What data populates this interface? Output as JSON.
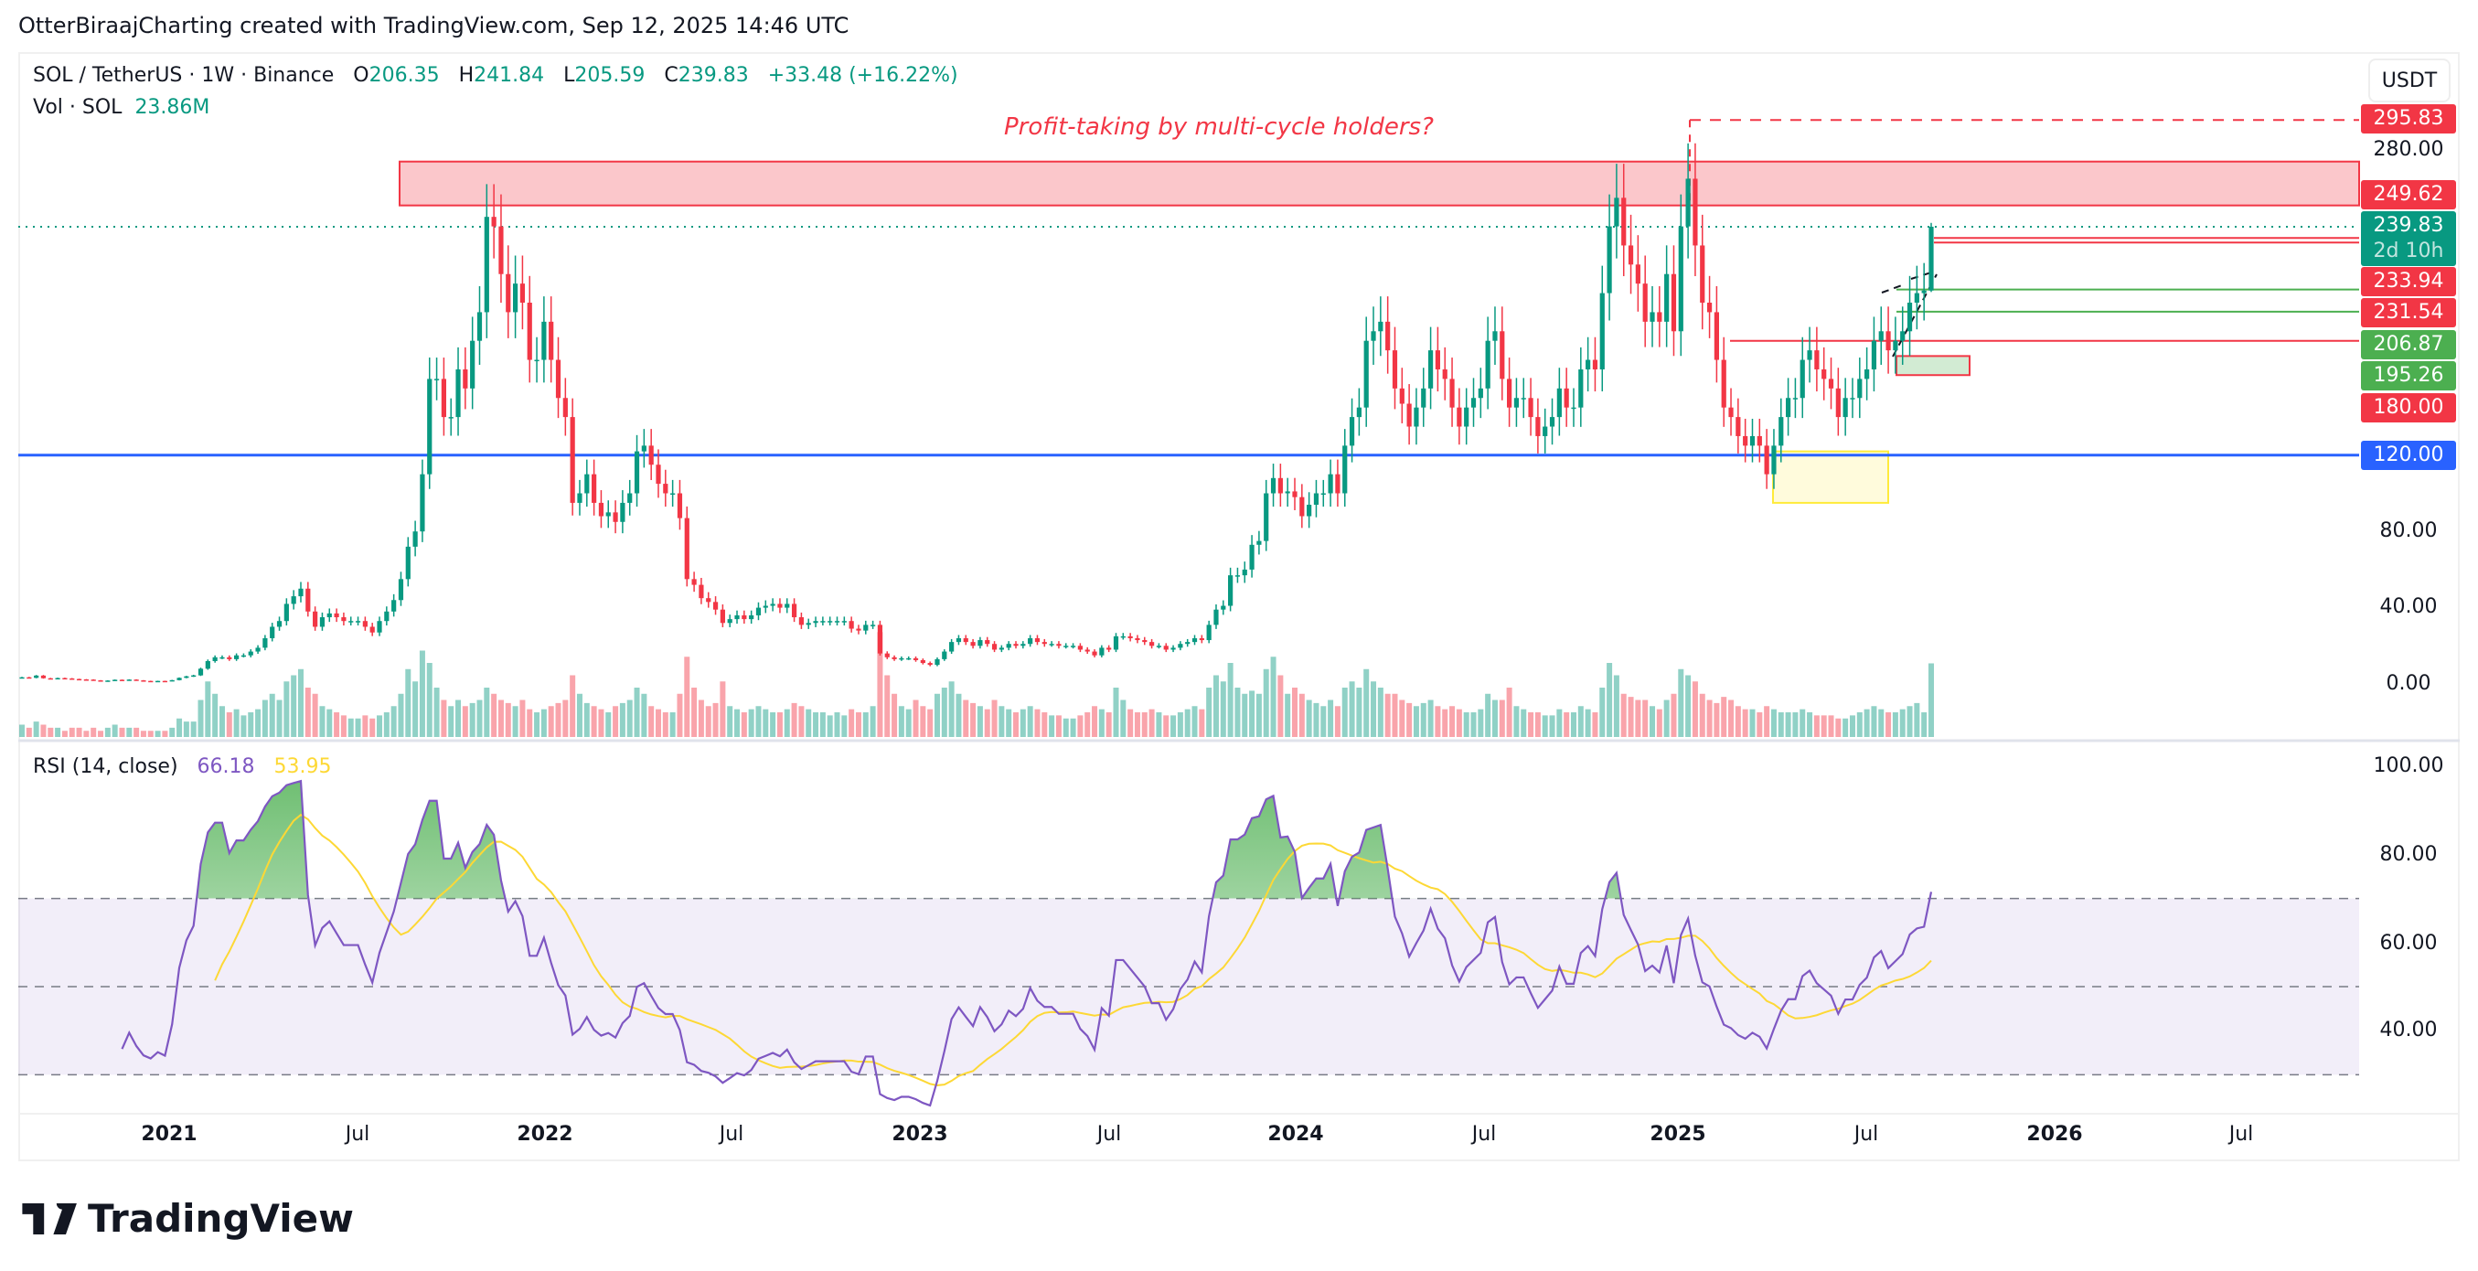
{
  "header": {
    "title": "OtterBiraajCharting created with TradingView.com, Sep 12, 2025 14:46 UTC"
  },
  "legend": {
    "symbol": "SOL / TetherUS · 1W · Binance",
    "open_label": "O",
    "open": "206.35",
    "high_label": "H",
    "high": "241.84",
    "low_label": "L",
    "low": "205.59",
    "close_label": "C",
    "close": "239.83",
    "change": "+33.48 (+16.22%)",
    "volume_label": "Vol · SOL",
    "volume": "23.86M"
  },
  "rsi_legend": {
    "label": "RSI (14, close)",
    "rsi": "66.18",
    "ma": "53.95"
  },
  "currency_button": "USDT",
  "annotation": "Profit-taking by multi-cycle holders?",
  "price_labels": [
    {
      "text": "295.83",
      "color": "#F23645"
    },
    {
      "text": "249.62",
      "color": "#F23645"
    },
    {
      "text": "239.83",
      "sub": "2d 10h",
      "color": "#089981"
    },
    {
      "text": "233.94",
      "color": "#F23645"
    },
    {
      "text": "231.54",
      "color": "#F23645"
    },
    {
      "text": "206.87",
      "color": "#4CAF50"
    },
    {
      "text": "195.26",
      "color": "#4CAF50"
    },
    {
      "text": "180.00",
      "color": "#F23645"
    },
    {
      "text": "120.00",
      "color": "#2962FF"
    }
  ],
  "price_ticks": [
    "280.00",
    "80.00",
    "40.00",
    "0.00"
  ],
  "rsi_ticks": [
    "100.00",
    "80.00",
    "60.00",
    "40.00"
  ],
  "time_labels": [
    "2021",
    "Jul",
    "2022",
    "Jul",
    "2023",
    "Jul",
    "2024",
    "Jul",
    "2025",
    "Jul",
    "2026",
    "Jul"
  ],
  "brand": "TradingView",
  "colors": {
    "up": "#089981",
    "down": "#F23645",
    "rsi": "#7E57C2",
    "rsi_ma": "#FDD835",
    "level": "#2962FF"
  },
  "chart_data": {
    "type": "candlestick",
    "interval": "1W",
    "y_axis": "USDT",
    "levels": [
      295.83,
      249.62,
      239.83,
      233.94,
      231.54,
      206.87,
      195.26,
      180.0,
      120.0
    ],
    "zones": [
      {
        "from": 251,
        "to": 274,
        "color": "#F23645"
      },
      {
        "from": 162,
        "to": 172,
        "color": "#4CAF50"
      },
      {
        "from": 95,
        "to": 122,
        "color": "#FFEB3B"
      }
    ],
    "last_candle": {
      "open": 206.35,
      "high": 241.84,
      "low": 205.59,
      "close": 239.83
    },
    "weekly_close": {
      "2020": [
        3.5,
        3.2,
        4.4,
        3.0,
        2.9,
        3.1,
        2.9,
        2.6,
        2.4,
        2.3,
        1.9,
        1.7,
        1.8,
        2.2,
        2.0,
        2.3,
        1.9,
        1.6,
        1.5,
        1.6,
        1.5
      ],
      "2021": [
        2.0,
        3.2,
        4.0,
        4.5,
        8,
        12,
        14,
        14,
        13,
        15,
        15,
        17,
        19,
        24,
        30,
        33,
        42,
        46,
        50,
        38,
        30,
        35,
        37,
        35,
        33,
        33,
        33,
        30,
        27,
        33,
        38,
        44,
        55,
        72,
        80,
        110,
        160,
        160,
        140,
        140,
        165,
        155,
        180,
        195,
        245,
        240,
        215,
        195,
        210,
        200,
        170,
        170,
        190
      ],
      "2022": [
        170,
        150,
        140,
        95,
        100,
        110,
        95,
        88,
        90,
        85,
        95,
        100,
        122,
        125,
        115,
        105,
        100,
        100,
        87,
        55,
        52,
        45,
        43,
        39,
        32,
        34,
        36,
        34,
        36,
        40,
        41,
        42,
        40,
        42,
        35,
        31,
        32,
        33,
        33,
        33,
        33,
        33,
        29,
        28,
        31,
        31,
        16,
        14,
        13,
        13.5,
        13.5,
        12.5,
        11,
        10
      ],
      "2023": [
        13,
        17,
        22,
        24,
        22,
        20,
        23,
        21,
        18,
        19,
        21,
        20,
        21,
        24,
        22,
        21,
        21,
        20,
        20,
        20,
        18,
        17,
        15,
        19,
        18,
        25,
        25,
        24,
        23,
        22,
        20,
        20,
        18,
        19,
        21,
        22,
        24,
        23,
        31,
        39,
        41,
        57,
        57,
        60,
        73,
        75,
        100,
        108,
        100,
        101
      ],
      "2024": [
        98,
        88,
        94,
        100,
        100,
        110,
        100,
        125,
        140,
        145,
        180,
        185,
        190,
        175,
        155,
        147,
        135,
        145,
        155,
        175,
        165,
        160,
        145,
        135,
        145,
        150,
        155,
        180,
        185,
        160,
        145,
        150,
        150,
        140,
        130,
        135,
        140,
        155,
        145,
        145,
        165,
        170,
        165,
        205,
        240,
        255,
        230,
        220,
        210,
        190,
        195,
        190
      ],
      "2025": [
        215,
        185,
        240,
        265,
        230,
        200,
        195,
        170,
        145,
        140,
        130,
        125,
        130,
        125,
        110,
        125,
        140,
        150,
        150,
        170,
        175,
        165,
        160,
        155,
        140,
        150,
        150,
        160,
        165,
        180,
        185,
        175,
        180,
        185,
        200,
        205,
        206.35,
        239.83
      ]
    },
    "weekly_volume_millions": {
      "2020": [
        4,
        3,
        5,
        4,
        3,
        3,
        2,
        3,
        3,
        2,
        3,
        2,
        3,
        4,
        3,
        3,
        3,
        2,
        2,
        2,
        2
      ],
      "2021": [
        3,
        6,
        5,
        5,
        12,
        18,
        14,
        10,
        8,
        9,
        7,
        8,
        9,
        12,
        14,
        12,
        18,
        20,
        22,
        16,
        14,
        10,
        9,
        8,
        7,
        6,
        6,
        7,
        6,
        7,
        8,
        10,
        14,
        22,
        18,
        28,
        24,
        16,
        12,
        10,
        12,
        10,
        11,
        12,
        16,
        14,
        12,
        11,
        10,
        12,
        9,
        8,
        9
      ],
      "2022": [
        10,
        11,
        12,
        20,
        14,
        11,
        10,
        9,
        8,
        10,
        11,
        12,
        16,
        14,
        10,
        9,
        8,
        8,
        14,
        26,
        16,
        12,
        10,
        11,
        18,
        10,
        9,
        8,
        9,
        10,
        9,
        8,
        8,
        9,
        11,
        10,
        9,
        8,
        8,
        7,
        8,
        7,
        9,
        8,
        8,
        10,
        34,
        20,
        14,
        10,
        9,
        12,
        10,
        9
      ],
      "2023": [
        14,
        16,
        18,
        14,
        12,
        11,
        10,
        9,
        12,
        10,
        9,
        8,
        9,
        10,
        9,
        8,
        7,
        7,
        6,
        6,
        7,
        8,
        10,
        9,
        8,
        16,
        12,
        9,
        8,
        8,
        9,
        8,
        7,
        7,
        8,
        9,
        10,
        9,
        16,
        20,
        18,
        24,
        16,
        14,
        15,
        14,
        22,
        26,
        20,
        14
      ],
      "2024": [
        16,
        14,
        12,
        11,
        10,
        12,
        10,
        16,
        18,
        16,
        22,
        18,
        16,
        14,
        14,
        12,
        11,
        10,
        11,
        12,
        10,
        9,
        10,
        9,
        8,
        8,
        9,
        14,
        12,
        12,
        16,
        10,
        9,
        8,
        8,
        7,
        7,
        9,
        8,
        8,
        10,
        9,
        8,
        16,
        24,
        20,
        14,
        13,
        12,
        12,
        10,
        9
      ],
      "2025": [
        12,
        14,
        22,
        20,
        18,
        14,
        12,
        11,
        13,
        12,
        10,
        9,
        9,
        8,
        10,
        9,
        8,
        8,
        8,
        9,
        8,
        7,
        7,
        7,
        6,
        6,
        7,
        8,
        9,
        10,
        9,
        8,
        8,
        9,
        10,
        11,
        8,
        23.86
      ]
    },
    "indicator": {
      "name": "RSI",
      "length": 14,
      "source": "close",
      "overbought": 70,
      "middle": 50,
      "oversold": 30
    }
  }
}
